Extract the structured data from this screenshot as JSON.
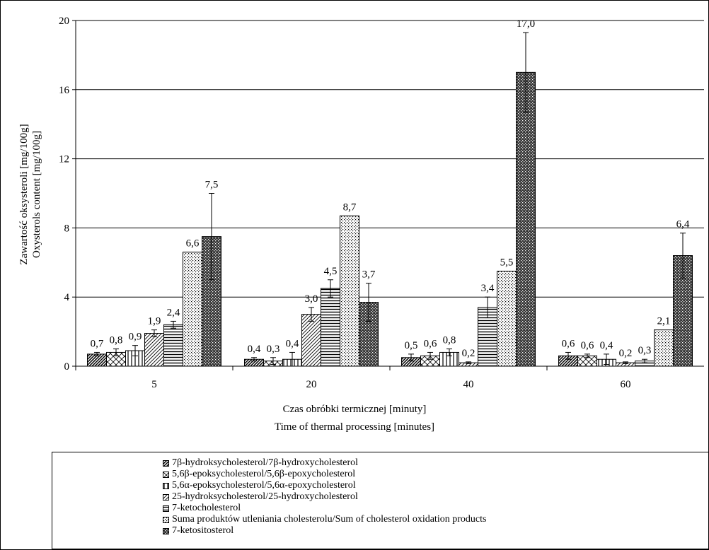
{
  "chart_data": {
    "type": "bar",
    "title": "",
    "xlabel": [
      "Czas obróbki termicznej [minuty]",
      "Time of thermal processing [minutes]"
    ],
    "ylabel": [
      "Zawartość oksysteroli [mg/100g]",
      "Oxysterols content [mg/100g]"
    ],
    "ylim": [
      0,
      20
    ],
    "yticks": [
      "0",
      "4",
      "8",
      "12",
      "16",
      "20"
    ],
    "grid": true,
    "legend_position": "bottom",
    "categories": [
      "5",
      "20",
      "40",
      "60"
    ],
    "series": [
      {
        "name": "7β-hydroksycholesterol/7β-hydroxycholesterol",
        "pattern": "diag-right",
        "values": [
          0.7,
          0.4,
          0.5,
          0.6
        ],
        "labels": [
          "0,7",
          "0,4",
          "0,5",
          "0,6"
        ],
        "errors": [
          0.1,
          0.1,
          0.2,
          0.2
        ]
      },
      {
        "name": "5,6β-epoksycholesterol/5,6β-epoxycholesterol",
        "pattern": "cross-hatch",
        "values": [
          0.8,
          0.3,
          0.6,
          0.6
        ],
        "labels": [
          "0,8",
          "0,3",
          "0,6",
          "0,6"
        ],
        "errors": [
          0.2,
          0.2,
          0.2,
          0.1
        ]
      },
      {
        "name": "5,6α-epoksycholesterol/5,6α-epoxycholesterol",
        "pattern": "vertical",
        "values": [
          0.9,
          0.4,
          0.8,
          0.4
        ],
        "labels": [
          "0,9",
          "0,4",
          "0,8",
          "0,4"
        ],
        "errors": [
          0.3,
          0.4,
          0.2,
          0.3
        ]
      },
      {
        "name": "25-hydroksycholesterol/25-hydroxycholesterol",
        "pattern": "diag-right-wide",
        "values": [
          1.9,
          3.0,
          0.2,
          0.2
        ],
        "labels": [
          "1,9",
          "3,0",
          "0,2",
          "0,2"
        ],
        "errors": [
          0.2,
          0.4,
          0.05,
          0.05
        ]
      },
      {
        "name": "7-ketocholesterol",
        "pattern": "horizontal",
        "values": [
          2.4,
          4.5,
          3.4,
          0.3
        ],
        "labels": [
          "2,4",
          "4,5",
          "3,4",
          "0,3"
        ],
        "errors": [
          0.2,
          0.5,
          0.6,
          0.1
        ]
      },
      {
        "name": "Suma produktów utleniania cholesterolu/Sum of cholesterol oxidation products",
        "pattern": "dots",
        "values": [
          6.6,
          8.7,
          5.5,
          2.1
        ],
        "labels": [
          "6,6",
          "8,7",
          "5,5",
          "2,1"
        ],
        "errors": [
          0,
          0,
          0,
          0
        ]
      },
      {
        "name": "7-ketositosterol",
        "pattern": "dark-check",
        "values": [
          7.5,
          3.7,
          17.0,
          6.4
        ],
        "labels": [
          "7,5",
          "3,7",
          "17,0",
          "6,4"
        ],
        "errors": [
          2.5,
          1.1,
          2.3,
          1.3
        ]
      }
    ]
  }
}
